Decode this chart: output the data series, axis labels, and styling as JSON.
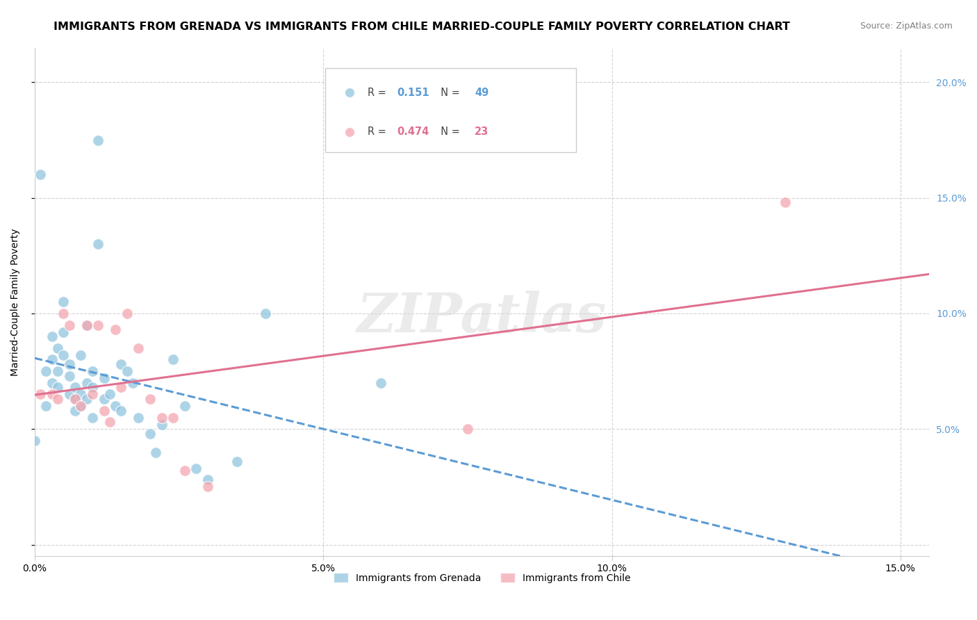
{
  "title": "IMMIGRANTS FROM GRENADA VS IMMIGRANTS FROM CHILE MARRIED-COUPLE FAMILY POVERTY CORRELATION CHART",
  "source": "Source: ZipAtlas.com",
  "ylabel": "Married-Couple Family Poverty",
  "xlim": [
    0.0,
    0.155
  ],
  "ylim": [
    -0.005,
    0.215
  ],
  "xtick_positions": [
    0.0,
    0.05,
    0.1,
    0.15
  ],
  "xtick_labels": [
    "0.0%",
    "5.0%",
    "10.0%",
    "15.0%"
  ],
  "ytick_positions": [
    0.0,
    0.05,
    0.1,
    0.15,
    0.2
  ],
  "ytick_labels": [
    "",
    "5.0%",
    "10.0%",
    "15.0%",
    "20.0%"
  ],
  "grenada_R": 0.151,
  "grenada_N": 49,
  "chile_R": 0.474,
  "chile_N": 23,
  "grenada_color": "#92c5de",
  "chile_color": "#f4a6b0",
  "grenada_line_color": "#5b9bd5",
  "chile_line_color": "#e07090",
  "background_color": "#ffffff",
  "grid_color": "#cccccc",
  "watermark": "ZIPatlas",
  "legend_label_grenada": "Immigrants from Grenada",
  "legend_label_chile": "Immigrants from Chile",
  "grenada_x": [
    0.0,
    0.001,
    0.002,
    0.002,
    0.003,
    0.003,
    0.003,
    0.004,
    0.004,
    0.004,
    0.005,
    0.005,
    0.005,
    0.006,
    0.006,
    0.006,
    0.007,
    0.007,
    0.007,
    0.008,
    0.008,
    0.008,
    0.009,
    0.009,
    0.009,
    0.01,
    0.01,
    0.01,
    0.011,
    0.011,
    0.012,
    0.012,
    0.013,
    0.014,
    0.015,
    0.015,
    0.016,
    0.017,
    0.018,
    0.02,
    0.021,
    0.022,
    0.024,
    0.026,
    0.028,
    0.03,
    0.035,
    0.04,
    0.06
  ],
  "grenada_y": [
    0.045,
    0.16,
    0.075,
    0.06,
    0.09,
    0.08,
    0.07,
    0.085,
    0.075,
    0.068,
    0.105,
    0.092,
    0.082,
    0.078,
    0.073,
    0.065,
    0.068,
    0.063,
    0.058,
    0.082,
    0.065,
    0.06,
    0.095,
    0.07,
    0.063,
    0.075,
    0.068,
    0.055,
    0.175,
    0.13,
    0.072,
    0.063,
    0.065,
    0.06,
    0.078,
    0.058,
    0.075,
    0.07,
    0.055,
    0.048,
    0.04,
    0.052,
    0.08,
    0.06,
    0.033,
    0.028,
    0.036,
    0.1,
    0.07
  ],
  "chile_x": [
    0.001,
    0.003,
    0.004,
    0.005,
    0.006,
    0.007,
    0.008,
    0.009,
    0.01,
    0.011,
    0.012,
    0.013,
    0.014,
    0.015,
    0.016,
    0.018,
    0.02,
    0.022,
    0.024,
    0.026,
    0.03,
    0.075,
    0.13
  ],
  "chile_y": [
    0.065,
    0.065,
    0.063,
    0.1,
    0.095,
    0.063,
    0.06,
    0.095,
    0.065,
    0.095,
    0.058,
    0.053,
    0.093,
    0.068,
    0.1,
    0.085,
    0.063,
    0.055,
    0.055,
    0.032,
    0.025,
    0.05,
    0.148
  ]
}
